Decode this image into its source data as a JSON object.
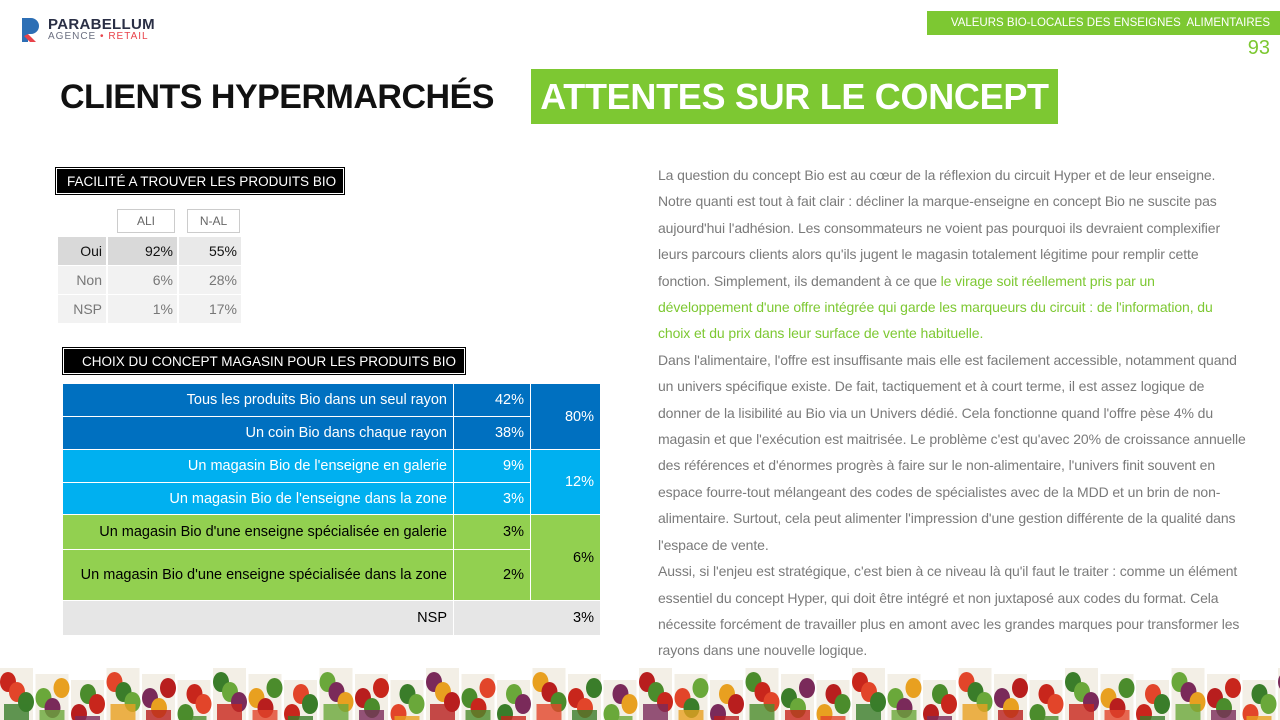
{
  "logo": {
    "name": "PARABELLUM",
    "agency": "AGENCE",
    "retail": "RETAIL"
  },
  "header": {
    "tag": "VALEURS BIO-LOCALES DES ENSEIGNES  ALIMENTAIRES",
    "page": "93"
  },
  "title": {
    "main": "CLIENTS HYPERMARCHÉS",
    "highlight": "ATTENTES SUR LE CONCEPT"
  },
  "table1": {
    "title": "FACILITÉ A TROUVER LES PRODUITS BIO",
    "columns": [
      "ALI",
      "N-AL"
    ],
    "rows": [
      [
        "Oui",
        "92%",
        "55%"
      ],
      [
        "Non",
        "6%",
        "28%"
      ],
      [
        "NSP",
        "1%",
        "17%"
      ]
    ]
  },
  "table2": {
    "title": "CHOIX DU CONCEPT MAGASIN POUR LES PRODUITS BIO",
    "rows": [
      [
        "Tous les produits Bio dans un seul rayon",
        "42%"
      ],
      [
        "Un coin Bio dans chaque rayon",
        "38%"
      ],
      [
        "Un magasin Bio de l'enseigne en galerie",
        "9%"
      ],
      [
        "Un magasin Bio de l'enseigne dans la zone",
        "3%"
      ],
      [
        "Un magasin Bio d'une enseigne spécialisée en galerie",
        "3%"
      ],
      [
        "Un magasin Bio d'une enseigne spécialisée dans la zone",
        "2%"
      ]
    ],
    "groups": [
      "80%",
      "12%",
      "6%"
    ],
    "nsp": [
      "NSP",
      "3%"
    ]
  },
  "text": {
    "p1": "La question du concept Bio est au cœur de la réflexion du circuit Hyper et de leur enseigne. Notre quanti est tout à fait clair : décliner la marque-enseigne en concept Bio ne suscite pas aujourd'hui l'adhésion. Les consommateurs ne voient pas pourquoi ils devraient complexifier leurs parcours clients alors qu'ils jugent le magasin totalement légitime pour remplir cette fonction. Simplement, ils demandent à ce que ",
    "p1_highlight": "le virage soit réellement pris par un développement d'une offre intégrée qui garde les marqueurs du circuit : de l'information, du choix et du prix dans leur surface de vente habituelle.",
    "p2": "Dans l'alimentaire, l'offre est insuffisante mais elle est facilement accessible, notamment quand un univers spécifique existe. De fait, tactiquement et à court terme, il est assez logique de donner de la lisibilité au Bio via un Univers dédié. Cela fonctionne quand l'offre pèse 4% du magasin et que l'exécution est maitrisée. Le problème c'est qu'avec 20% de croissance annuelle des références et d'énormes progrès à faire sur le non-alimentaire, l'univers finit souvent en espace fourre-tout mélangeant des codes de spécialistes avec de la MDD et un brin de non-alimentaire. Surtout, cela peut alimenter l'impression d'une gestion différente de la qualité dans l'espace de vente.",
    "p3": "Aussi, si l'enjeu est stratégique, c'est bien à ce niveau là qu'il faut le traiter : comme un élément essentiel du concept Hyper, qui doit être intégré et non juxtaposé aux codes du format. Cela nécessite forcément de travailler plus en amont avec les grandes marques pour transformer les rayons dans une nouvelle logique."
  }
}
